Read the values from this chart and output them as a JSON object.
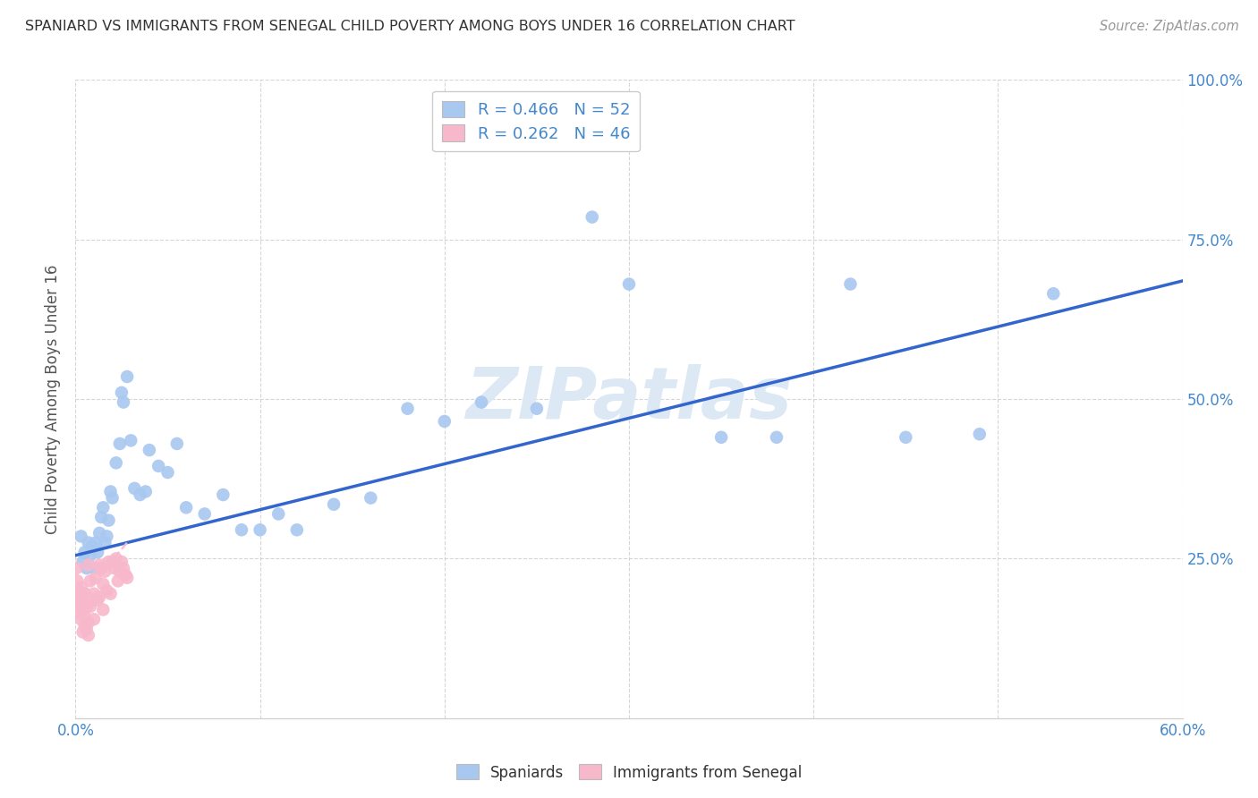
{
  "title": "SPANIARD VS IMMIGRANTS FROM SENEGAL CHILD POVERTY AMONG BOYS UNDER 16 CORRELATION CHART",
  "source": "Source: ZipAtlas.com",
  "ylabel": "Child Poverty Among Boys Under 16",
  "xlim": [
    0.0,
    0.6
  ],
  "ylim": [
    0.0,
    1.0
  ],
  "xticks": [
    0.0,
    0.1,
    0.2,
    0.3,
    0.4,
    0.5,
    0.6
  ],
  "yticks": [
    0.0,
    0.25,
    0.5,
    0.75,
    1.0
  ],
  "blue_color": "#a8c8f0",
  "pink_color": "#f8b8cc",
  "line_blue": "#3366cc",
  "line_pink_color": "#cc6688",
  "legend_blue_r": "R = 0.466",
  "legend_blue_n": "N = 52",
  "legend_pink_r": "R = 0.262",
  "legend_pink_n": "N = 46",
  "r_color": "#4488cc",
  "n_color": "#ee3333",
  "background_color": "#ffffff",
  "grid_color": "#cccccc",
  "title_color": "#333333",
  "axis_color": "#4488cc",
  "watermark": "ZIPatlas",
  "watermark_color": "#dde8f5",
  "spaniards_x": [
    0.003,
    0.004,
    0.005,
    0.006,
    0.007,
    0.008,
    0.009,
    0.01,
    0.011,
    0.012,
    0.013,
    0.014,
    0.015,
    0.016,
    0.017,
    0.018,
    0.019,
    0.02,
    0.022,
    0.024,
    0.025,
    0.026,
    0.028,
    0.03,
    0.032,
    0.035,
    0.038,
    0.04,
    0.045,
    0.05,
    0.055,
    0.06,
    0.07,
    0.08,
    0.09,
    0.1,
    0.11,
    0.12,
    0.14,
    0.16,
    0.18,
    0.2,
    0.22,
    0.25,
    0.28,
    0.3,
    0.35,
    0.38,
    0.42,
    0.45,
    0.49,
    0.53
  ],
  "spaniards_y": [
    0.285,
    0.245,
    0.26,
    0.235,
    0.275,
    0.255,
    0.27,
    0.235,
    0.275,
    0.26,
    0.29,
    0.315,
    0.33,
    0.275,
    0.285,
    0.31,
    0.355,
    0.345,
    0.4,
    0.43,
    0.51,
    0.495,
    0.535,
    0.435,
    0.36,
    0.35,
    0.355,
    0.42,
    0.395,
    0.385,
    0.43,
    0.33,
    0.32,
    0.35,
    0.295,
    0.295,
    0.32,
    0.295,
    0.335,
    0.345,
    0.485,
    0.465,
    0.495,
    0.485,
    0.785,
    0.68,
    0.44,
    0.44,
    0.68,
    0.44,
    0.445,
    0.665
  ],
  "senegal_x": [
    0.0005,
    0.001,
    0.001,
    0.0015,
    0.002,
    0.002,
    0.0025,
    0.003,
    0.003,
    0.003,
    0.004,
    0.004,
    0.004,
    0.005,
    0.005,
    0.005,
    0.006,
    0.006,
    0.007,
    0.007,
    0.007,
    0.008,
    0.008,
    0.009,
    0.01,
    0.01,
    0.011,
    0.012,
    0.013,
    0.013,
    0.014,
    0.015,
    0.015,
    0.016,
    0.017,
    0.018,
    0.019,
    0.02,
    0.021,
    0.022,
    0.023,
    0.024,
    0.025,
    0.026,
    0.027,
    0.028
  ],
  "senegal_y": [
    0.235,
    0.215,
    0.18,
    0.2,
    0.19,
    0.165,
    0.175,
    0.205,
    0.185,
    0.155,
    0.19,
    0.17,
    0.135,
    0.195,
    0.16,
    0.145,
    0.175,
    0.14,
    0.24,
    0.15,
    0.13,
    0.215,
    0.175,
    0.185,
    0.195,
    0.155,
    0.22,
    0.185,
    0.24,
    0.19,
    0.235,
    0.21,
    0.17,
    0.23,
    0.2,
    0.245,
    0.195,
    0.245,
    0.235,
    0.25,
    0.215,
    0.23,
    0.245,
    0.235,
    0.225,
    0.22
  ],
  "blue_line_x0": 0.0,
  "blue_line_y0": 0.255,
  "blue_line_x1": 0.6,
  "blue_line_y1": 0.685,
  "pink_line_x0": 0.0,
  "pink_line_y0": 0.18,
  "pink_line_x1": 0.028,
  "pink_line_y1": 0.275
}
